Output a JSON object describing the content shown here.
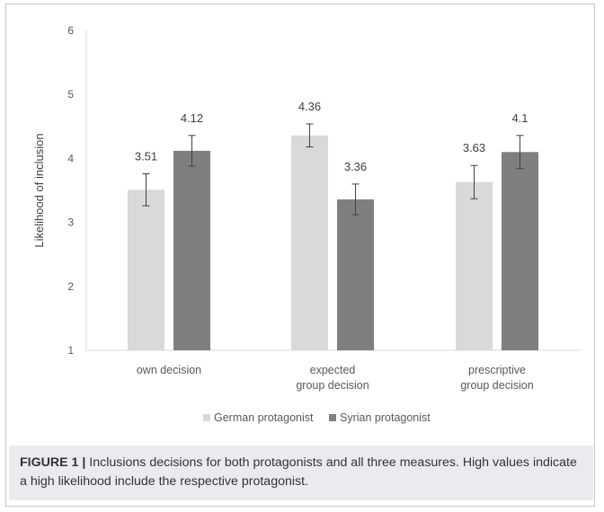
{
  "chart_data": {
    "type": "bar",
    "title": "",
    "ylabel": "Likelihood of inclusion",
    "xlabel": "",
    "ylim": [
      1,
      6
    ],
    "yticks": [
      1,
      2,
      3,
      4,
      5,
      6
    ],
    "grid": false,
    "legend_position": "bottom",
    "categories": [
      [
        "own decision"
      ],
      [
        "expected",
        "group decision"
      ],
      [
        "prescriptive",
        "group decision"
      ]
    ],
    "series": [
      {
        "name": "German protagonist",
        "color": "#d9d9d9",
        "values": [
          3.51,
          4.36,
          3.63
        ],
        "labels": [
          "3.51",
          "4.36",
          "3.63"
        ],
        "error": [
          0.25,
          0.18,
          0.26
        ]
      },
      {
        "name": "Syrian protagonist",
        "color": "#7f7f7f",
        "values": [
          4.12,
          3.36,
          4.1
        ],
        "labels": [
          "4.12",
          "3.36",
          "4.1"
        ],
        "error": [
          0.24,
          0.24,
          0.26
        ]
      }
    ]
  },
  "caption": {
    "label": "FIGURE 1 |",
    "text": " Inclusions decisions for both protagonists and all three measures. High values indicate a high likelihood include the respective protagonist."
  }
}
